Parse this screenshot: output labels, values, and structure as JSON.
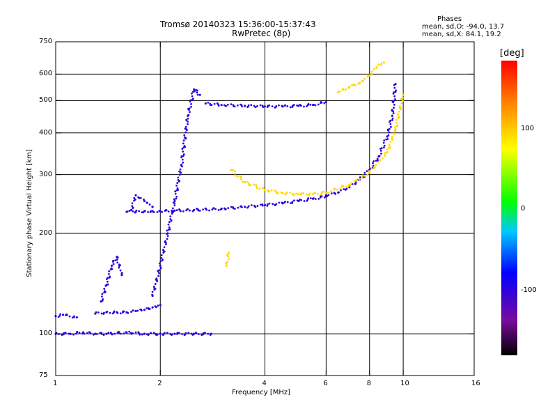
{
  "chart_data": {
    "type": "scatter",
    "title": "Tromsø 20140323 15:36:00-15:37:43",
    "subtitle": "RwPretec (8p)",
    "phases": {
      "heading": "Phases",
      "line1": "mean, sd,O: -94.0, 13.7",
      "line2": "mean, sd,X:  84.1, 19.2"
    },
    "xlabel": "Frequency [MHz]",
    "ylabel": "Stationary phase Virtual Height [km]",
    "x_scale": "log2",
    "y_scale": "log",
    "xlim": [
      1,
      16
    ],
    "ylim": [
      75,
      750
    ],
    "x_ticks": [
      1,
      2,
      4,
      6,
      8,
      10,
      16
    ],
    "x_tick_labels": [
      "1",
      "2",
      "4",
      "6",
      "8",
      "10",
      "16"
    ],
    "y_ticks": [
      75,
      100,
      200,
      300,
      400,
      500,
      600,
      750
    ],
    "y_tick_labels": [
      "75",
      "100",
      "200",
      "300",
      "400",
      "500",
      "600",
      "750"
    ],
    "grid": true,
    "colorbar": {
      "label": "[deg]",
      "range": [
        -180,
        180
      ],
      "ticks": [
        100,
        0,
        -100
      ],
      "tick_labels": [
        "100",
        "0",
        "-100"
      ]
    },
    "traces": [
      {
        "phase": -100,
        "x": [
          1.0,
          1.1,
          1.2,
          1.3,
          1.4,
          1.6,
          1.8,
          2.0,
          2.2,
          2.5,
          2.8
        ],
        "y": [
          100,
          100,
          101,
          100,
          100,
          101,
          100,
          100,
          100,
          100,
          100
        ]
      },
      {
        "phase": -100,
        "x": [
          1.0,
          1.05,
          1.15
        ],
        "y": [
          113,
          114,
          112
        ]
      },
      {
        "phase": -100,
        "x": [
          1.3,
          1.4,
          1.5,
          1.6,
          1.7,
          1.8,
          1.9,
          2.0
        ],
        "y": [
          115,
          116,
          116,
          116,
          117,
          118,
          120,
          122
        ]
      },
      {
        "phase": -100,
        "x": [
          1.35,
          1.4,
          1.45,
          1.5,
          1.55
        ],
        "y": [
          125,
          140,
          160,
          170,
          150
        ]
      },
      {
        "phase": -100,
        "x": [
          1.6,
          1.7,
          1.8,
          1.9,
          2.0,
          2.2,
          2.5,
          3.0,
          3.5,
          4.0,
          4.5,
          5.0,
          5.5,
          6.0
        ],
        "y": [
          232,
          232,
          233,
          233,
          233,
          234,
          235,
          237,
          240,
          243,
          246,
          250,
          254,
          258
        ]
      },
      {
        "phase": -100,
        "x": [
          1.65,
          1.7,
          1.8,
          1.9
        ],
        "y": [
          235,
          260,
          250,
          240
        ]
      },
      {
        "phase": -100,
        "x": [
          1.9,
          2.0,
          2.1,
          2.2,
          2.3,
          2.4,
          2.5,
          2.6
        ],
        "y": [
          130,
          160,
          200,
          250,
          320,
          450,
          540,
          520
        ]
      },
      {
        "phase": -100,
        "x": [
          2.7,
          3.0,
          3.5,
          4.0,
          4.5,
          5.0,
          5.5,
          6.0
        ],
        "y": [
          490,
          485,
          482,
          480,
          480,
          482,
          485,
          495
        ]
      },
      {
        "phase": -100,
        "x": [
          6.0,
          6.5,
          7.0,
          7.5,
          8.0,
          8.5,
          9.0,
          9.3,
          9.5
        ],
        "y": [
          260,
          265,
          275,
          290,
          310,
          340,
          390,
          450,
          560
        ]
      },
      {
        "phase": 90,
        "x": [
          3.2,
          3.5,
          4.0,
          4.5,
          5.0,
          5.5,
          6.0
        ],
        "y": [
          310,
          285,
          270,
          264,
          262,
          262,
          265
        ]
      },
      {
        "phase": 90,
        "x": [
          6.0,
          7.0,
          8.0,
          9.0,
          9.5,
          10.0
        ],
        "y": [
          265,
          280,
          305,
          350,
          410,
          520
        ]
      },
      {
        "phase": 90,
        "x": [
          6.5,
          7.0,
          7.5,
          8.0,
          8.5,
          8.8
        ],
        "y": [
          530,
          550,
          565,
          595,
          640,
          650
        ]
      },
      {
        "phase": 90,
        "x": [
          3.1,
          3.15
        ],
        "y": [
          160,
          175
        ]
      }
    ]
  }
}
